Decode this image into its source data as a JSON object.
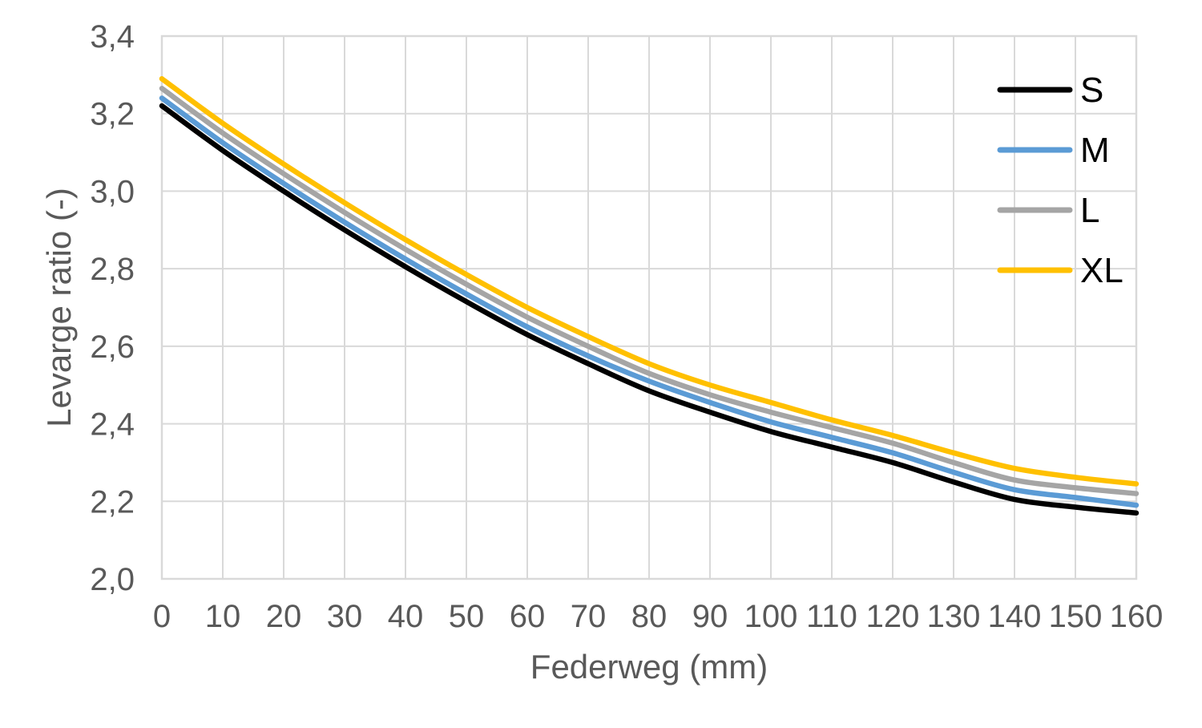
{
  "chart_data": {
    "type": "line",
    "title": "",
    "xlabel": "Federweg (mm)",
    "ylabel": "Levarge ratio (-)",
    "xlim": [
      0,
      160
    ],
    "ylim": [
      2.0,
      3.4
    ],
    "grid": true,
    "legend_position": "inside-top-right",
    "decimal_separator": ",",
    "x": [
      0,
      10,
      20,
      30,
      40,
      50,
      60,
      70,
      80,
      90,
      100,
      110,
      120,
      130,
      140,
      150,
      160
    ],
    "x_tick_labels": [
      "0",
      "10",
      "20",
      "30",
      "40",
      "50",
      "60",
      "70",
      "80",
      "90",
      "100",
      "110",
      "120",
      "130",
      "140",
      "150",
      "160"
    ],
    "y_tick_values": [
      2.0,
      2.2,
      2.4,
      2.6,
      2.8,
      3.0,
      3.2,
      3.4
    ],
    "y_tick_labels": [
      "2,0",
      "2,2",
      "2,4",
      "2,6",
      "2,8",
      "3,0",
      "3,2",
      "3,4"
    ],
    "series": [
      {
        "name": "S",
        "color": "#000000",
        "values": [
          3.22,
          3.105,
          3.0,
          2.9,
          2.805,
          2.715,
          2.63,
          2.555,
          2.485,
          2.43,
          2.38,
          2.34,
          2.3,
          2.25,
          2.205,
          2.185,
          2.17
        ]
      },
      {
        "name": "M",
        "color": "#5B9BD5",
        "values": [
          3.24,
          3.125,
          3.02,
          2.92,
          2.825,
          2.735,
          2.65,
          2.575,
          2.51,
          2.455,
          2.405,
          2.365,
          2.325,
          2.275,
          2.23,
          2.21,
          2.19
        ]
      },
      {
        "name": "L",
        "color": "#A5A5A5",
        "values": [
          3.265,
          3.15,
          3.045,
          2.945,
          2.85,
          2.76,
          2.675,
          2.6,
          2.53,
          2.475,
          2.43,
          2.39,
          2.35,
          2.3,
          2.255,
          2.235,
          2.22
        ]
      },
      {
        "name": "XL",
        "color": "#FFC000",
        "values": [
          3.29,
          3.175,
          3.07,
          2.97,
          2.875,
          2.785,
          2.7,
          2.625,
          2.555,
          2.5,
          2.455,
          2.41,
          2.37,
          2.325,
          2.285,
          2.262,
          2.245
        ]
      }
    ]
  },
  "style_colors": {
    "background": "#FFFFFF",
    "gridline": "#D9D9D9",
    "plot_border": "#D9D9D9",
    "axis_text": "#595959"
  }
}
